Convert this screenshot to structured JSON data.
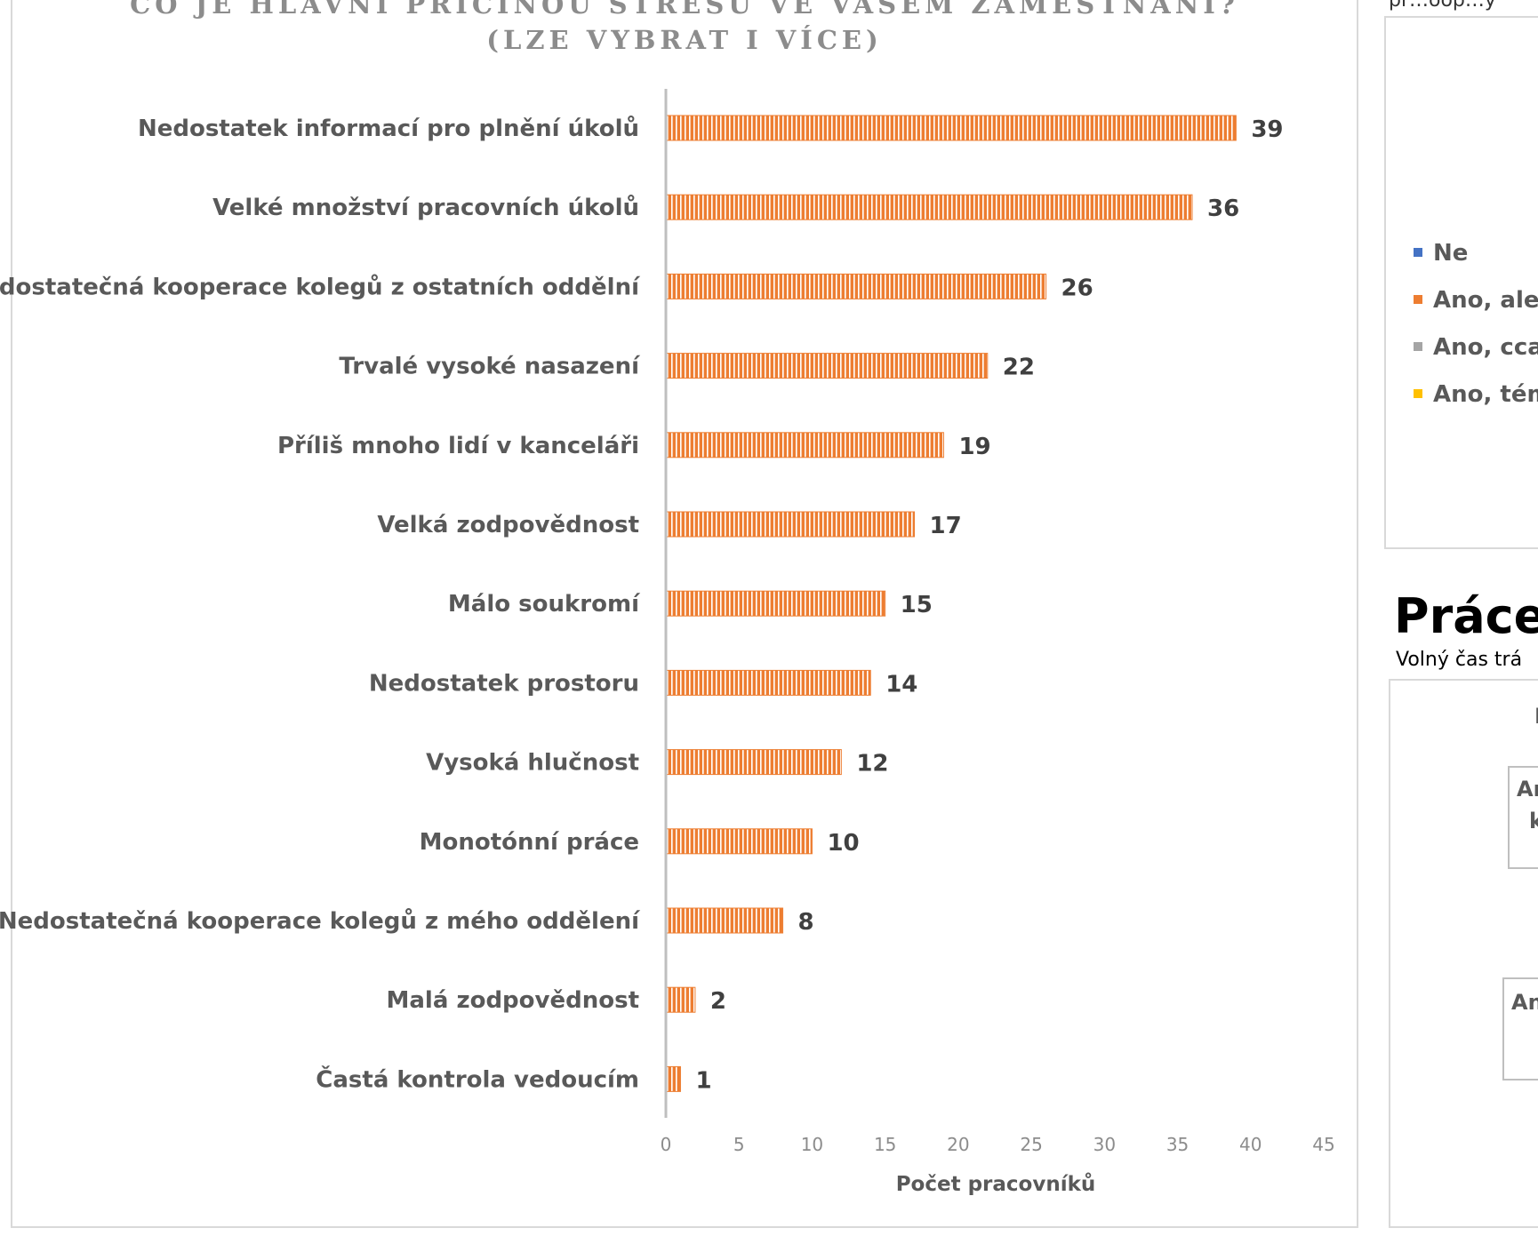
{
  "chart_data": {
    "type": "bar",
    "orientation": "horizontal",
    "title_lines": [
      "CO JE HLAVNÍ PŘÍČINOU STRESU VE VAŠEM ZAMĚSTNÁNÍ?",
      "(LZE VYBRAT I VÍCE)"
    ],
    "categories": [
      "Nedostatek informací pro plnění úkolů",
      "Velké množství pracovních úkolů",
      "Nedostatečná kooperace kolegů z ostatních oddělní",
      "Trvalé vysoké nasazení",
      "Příliš mnoho lidí v kanceláři",
      "Velká zodpovědnost",
      "Málo soukromí",
      "Nedostatek prostoru",
      "Vysoká hlučnost",
      "Monotónní práce",
      "Nedostatečná kooperace kolegů z mého oddělení",
      "Malá zodpovědnost",
      "Častá kontrola vedoucím"
    ],
    "values": [
      39,
      36,
      26,
      22,
      19,
      17,
      15,
      14,
      12,
      10,
      8,
      2,
      1
    ],
    "x_ticks": [
      0,
      5,
      10,
      15,
      20,
      25,
      30,
      35,
      40,
      45
    ],
    "xlim": [
      0,
      45
    ],
    "xlabel": "Počet pracovníků",
    "bar_color": "#ed7d31",
    "bar_pattern": "vertical stripes",
    "data_labels": true,
    "grid": false
  },
  "right_panel": {
    "top_fragment": "pr…oop…y",
    "legend": [
      {
        "label": "Ne",
        "color": "#4472c4"
      },
      {
        "label": "Ano, ale v",
        "color": "#ed7d31"
      },
      {
        "label": "Ano, cca",
        "color": "#a5a5a5"
      },
      {
        "label": "Ano, tém",
        "color": "#ffc000"
      }
    ],
    "heading": "Práce",
    "subtext": "Volný čas trá",
    "lower_chart": {
      "fragment_top": "I",
      "callout1": [
        "An",
        "ka"
      ],
      "callout2": [
        "An"
      ]
    }
  }
}
